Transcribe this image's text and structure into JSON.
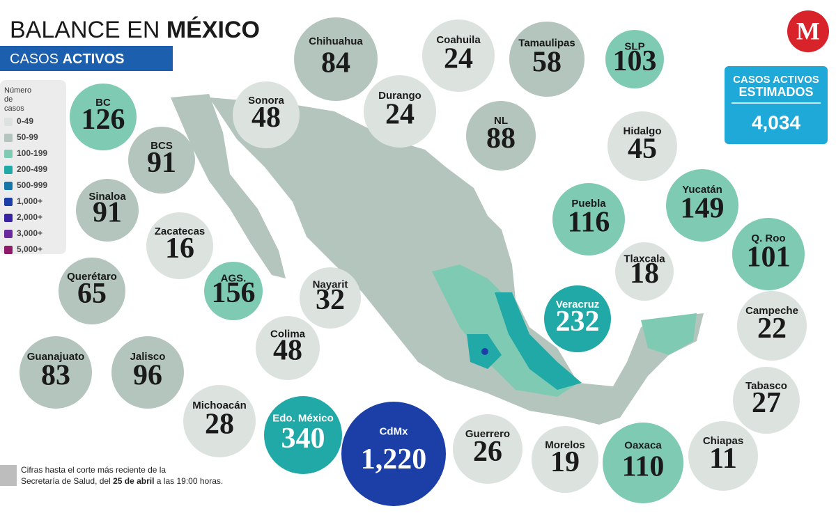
{
  "header": {
    "title": [
      "BALANCE EN ",
      "MÉXICO"
    ],
    "subtitle": [
      "CASOS ",
      "ACTIVOS"
    ]
  },
  "legend": {
    "title": [
      "Número",
      "de",
      "casos"
    ],
    "items": [
      {
        "label": "0-49",
        "color": "#dce3df"
      },
      {
        "label": "50-99",
        "color": "#b3c5bc"
      },
      {
        "label": "100-199",
        "color": "#7fcab3"
      },
      {
        "label": "200-499",
        "color": "#20a9a6"
      },
      {
        "label": "500-999",
        "color": "#1776a8"
      },
      {
        "label": "1,000+",
        "color": "#1b3fa6"
      },
      {
        "label": "2,000+",
        "color": "#3a23a0"
      },
      {
        "label": "3,000+",
        "color": "#6a2a9e"
      },
      {
        "label": "5,000+",
        "color": "#8e1a6a"
      }
    ]
  },
  "total": {
    "label": [
      "CASOS ACTIVOS",
      "ESTIMADOS"
    ],
    "value": "4,034"
  },
  "states": [
    {
      "name": "BC",
      "value": "126",
      "color": "#7fcab3"
    },
    {
      "name": "BCS",
      "value": "91",
      "color": "#b3c5bc"
    },
    {
      "name": "Sinaloa",
      "value": "91",
      "color": "#b3c5bc"
    },
    {
      "name": "Zacatecas",
      "value": "16",
      "color": "#dce3df"
    },
    {
      "name": "Querétaro",
      "value": "65",
      "color": "#b3c5bc"
    },
    {
      "name": "Guanajuato",
      "value": "83",
      "color": "#b3c5bc"
    },
    {
      "name": "Jalisco",
      "value": "96",
      "color": "#b3c5bc"
    },
    {
      "name": "Michoacán",
      "value": "28",
      "color": "#dce3df"
    },
    {
      "name": "Colima",
      "value": "48",
      "color": "#dce3df"
    },
    {
      "name": "AGS.",
      "value": "156",
      "color": "#7fcab3"
    },
    {
      "name": "Nayarit",
      "value": "32",
      "color": "#dce3df"
    },
    {
      "name": "Sonora",
      "value": "48",
      "color": "#dce3df"
    },
    {
      "name": "Chihuahua",
      "value": "84",
      "color": "#b3c5bc"
    },
    {
      "name": "Durango",
      "value": "24",
      "color": "#dce3df"
    },
    {
      "name": "Coahuila",
      "value": "24",
      "color": "#dce3df"
    },
    {
      "name": "NL",
      "value": "88",
      "color": "#b3c5bc"
    },
    {
      "name": "Tamaulipas",
      "value": "58",
      "color": "#b3c5bc"
    },
    {
      "name": "SLP",
      "value": "103",
      "color": "#7fcab3"
    },
    {
      "name": "Hidalgo",
      "value": "45",
      "color": "#dce3df"
    },
    {
      "name": "Puebla",
      "value": "116",
      "color": "#7fcab3"
    },
    {
      "name": "Tlaxcala",
      "value": "18",
      "color": "#dce3df"
    },
    {
      "name": "Yucatán",
      "value": "149",
      "color": "#7fcab3"
    },
    {
      "name": "Q. Roo",
      "value": "101",
      "color": "#7fcab3"
    },
    {
      "name": "Campeche",
      "value": "22",
      "color": "#dce3df"
    },
    {
      "name": "Veracruz",
      "value": "232",
      "color": "#20a9a6"
    },
    {
      "name": "Tabasco",
      "value": "27",
      "color": "#dce3df"
    },
    {
      "name": "Chiapas",
      "value": "11",
      "color": "#dce3df"
    },
    {
      "name": "Oaxaca",
      "value": "110",
      "color": "#7fcab3"
    },
    {
      "name": "Morelos",
      "value": "19",
      "color": "#dce3df"
    },
    {
      "name": "Guerrero",
      "value": "26",
      "color": "#dce3df"
    },
    {
      "name": "CdMx",
      "value": "1,220",
      "color": "#1b3fa6"
    },
    {
      "name": "Edo. México",
      "value": "340",
      "color": "#20a9a6"
    }
  ],
  "footnote": [
    "Cifras hasta el corte más reciente de la",
    "Secretaría de Salud, del ",
    "25 de abril",
    " a las 19:00 horas."
  ]
}
